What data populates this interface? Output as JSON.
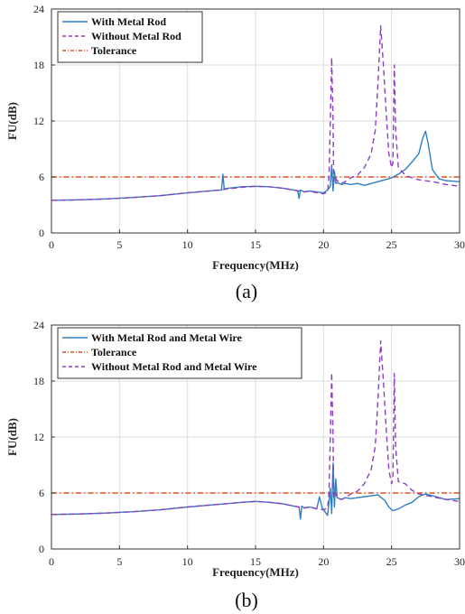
{
  "chart_data": [
    {
      "panel_label": "(a)",
      "type": "line",
      "xlabel": "Frequency(MHz)",
      "ylabel": "FU(dB)",
      "xlim": [
        0,
        30
      ],
      "ylim": [
        0,
        24
      ],
      "xticks": [
        0,
        5,
        10,
        15,
        20,
        25,
        30
      ],
      "yticks": [
        0,
        6,
        12,
        18,
        24
      ],
      "xtick_labels": [
        "0",
        "5",
        "10",
        "15",
        "20",
        "25",
        "30"
      ],
      "ytick_labels": [
        "0",
        "6",
        "12",
        "18",
        "24"
      ],
      "grid": true,
      "legend_position": "top-left",
      "series": [
        {
          "name": "With Metal Rod",
          "color": "#2f7fc1",
          "style": "solid",
          "x": [
            0,
            2,
            4,
            6,
            8,
            10,
            12,
            12.5,
            12.6,
            12.7,
            12.8,
            13,
            14,
            15,
            16,
            17,
            17.8,
            18.1,
            18.2,
            18.3,
            18.6,
            19,
            19.5,
            20,
            20.3,
            20.5,
            20.6,
            20.7,
            20.8,
            20.9,
            21,
            21.3,
            21.6,
            22,
            22.5,
            23,
            24,
            25,
            25.5,
            26,
            26.5,
            27,
            27.3,
            27.5,
            27.7,
            28,
            28.5,
            29,
            30
          ],
          "y": [
            3.5,
            3.55,
            3.65,
            3.8,
            4.0,
            4.3,
            4.55,
            4.6,
            6.3,
            4.7,
            4.75,
            4.8,
            4.95,
            5.0,
            4.95,
            4.8,
            4.6,
            4.5,
            3.7,
            4.6,
            4.4,
            4.5,
            4.4,
            4.3,
            4.6,
            5.0,
            7.3,
            4.5,
            6.6,
            5.3,
            5.4,
            5.2,
            5.3,
            5.2,
            5.3,
            5.1,
            5.5,
            5.9,
            6.3,
            6.8,
            7.6,
            8.5,
            10.2,
            10.9,
            9.5,
            6.8,
            5.8,
            5.6,
            5.5
          ]
        },
        {
          "name": "Without Metal Rod",
          "color": "#8e3fbf",
          "style": "dashed",
          "x": [
            0,
            2,
            4,
            6,
            8,
            10,
            12,
            14,
            15,
            16,
            17,
            17.8,
            18.2,
            18.6,
            19,
            19.5,
            20,
            20.3,
            20.4,
            20.5,
            20.6,
            20.7,
            20.75,
            20.85,
            21,
            21.3,
            21.6,
            22,
            22.5,
            23,
            23.5,
            23.8,
            24,
            24.2,
            24.4,
            24.6,
            24.8,
            25.0,
            25.1,
            25.2,
            25.3,
            25.5,
            26,
            26.5,
            27,
            28,
            29,
            30
          ],
          "y": [
            3.5,
            3.55,
            3.65,
            3.8,
            4.0,
            4.3,
            4.55,
            4.9,
            5.0,
            4.95,
            4.8,
            4.6,
            4.5,
            4.4,
            4.5,
            4.3,
            4.2,
            4.4,
            6.0,
            12.0,
            18.8,
            12.0,
            5.5,
            6.0,
            5.6,
            5.3,
            5.5,
            5.9,
            6.2,
            7.0,
            8.5,
            11.0,
            16.0,
            22.2,
            18.0,
            13.0,
            8.5,
            7.0,
            7.5,
            18.0,
            11.0,
            7.0,
            6.2,
            5.9,
            5.7,
            5.5,
            5.2,
            5.0
          ]
        },
        {
          "name": "Tolerance",
          "color": "#e0521d",
          "style": "dashdot",
          "x": [
            0,
            30
          ],
          "y": [
            6,
            6
          ]
        }
      ]
    },
    {
      "panel_label": "(b)",
      "type": "line",
      "xlabel": "Frequency(MHz)",
      "ylabel": "FU(dB)",
      "xlim": [
        0,
        30
      ],
      "ylim": [
        0,
        24
      ],
      "xticks": [
        0,
        5,
        10,
        15,
        20,
        25,
        30
      ],
      "yticks": [
        0,
        6,
        12,
        18,
        24
      ],
      "xtick_labels": [
        "0",
        "5",
        "10",
        "15",
        "20",
        "25",
        "30"
      ],
      "ytick_labels": [
        "0",
        "6",
        "12",
        "18",
        "24"
      ],
      "grid": true,
      "legend_position": "top-left",
      "series": [
        {
          "name": "With Metal Rod and Metal Wire",
          "color": "#2f7fc1",
          "style": "solid",
          "x": [
            0,
            2,
            4,
            6,
            8,
            10,
            12,
            14,
            15,
            16,
            17,
            17.8,
            18.2,
            18.3,
            18.4,
            18.6,
            19,
            19.5,
            19.7,
            19.9,
            20,
            20.3,
            20.5,
            20.6,
            20.7,
            20.8,
            20.9,
            21,
            21.3,
            21.6,
            22,
            23,
            24,
            24.5,
            24.8,
            25.1,
            25.5,
            26,
            26.5,
            27,
            27.5,
            28,
            29,
            30
          ],
          "y": [
            3.7,
            3.75,
            3.85,
            4.0,
            4.2,
            4.5,
            4.75,
            5.0,
            5.1,
            5.0,
            4.85,
            4.6,
            4.5,
            3.2,
            4.6,
            4.4,
            4.5,
            4.3,
            5.6,
            4.4,
            4.2,
            3.6,
            6.5,
            3.8,
            9.2,
            4.5,
            7.5,
            5.5,
            5.3,
            5.5,
            5.4,
            5.6,
            5.8,
            5.2,
            4.5,
            4.1,
            4.3,
            4.7,
            5.0,
            5.6,
            5.9,
            5.7,
            5.3,
            5.4
          ]
        },
        {
          "name": "Tolerance",
          "color": "#e0521d",
          "style": "dashdot",
          "x": [
            0,
            30
          ],
          "y": [
            6,
            6
          ]
        },
        {
          "name": "Without Metal Rod and Metal Wire",
          "color": "#8e3fbf",
          "style": "dashed",
          "x": [
            0,
            2,
            4,
            6,
            8,
            10,
            12,
            14,
            15,
            16,
            17,
            17.8,
            18.2,
            18.6,
            19,
            19.5,
            20,
            20.3,
            20.4,
            20.5,
            20.6,
            20.7,
            20.75,
            20.85,
            21,
            21.3,
            21.6,
            22,
            22.5,
            23,
            23.5,
            23.8,
            24,
            24.2,
            24.4,
            24.6,
            24.8,
            25.0,
            25.1,
            25.2,
            25.3,
            25.5,
            26,
            26.5,
            27,
            28,
            29,
            30
          ],
          "y": [
            3.7,
            3.75,
            3.85,
            4.0,
            4.2,
            4.5,
            4.75,
            5.0,
            5.1,
            5.0,
            4.85,
            4.6,
            4.5,
            4.4,
            4.5,
            4.3,
            4.2,
            4.4,
            6.0,
            12.0,
            18.9,
            12.0,
            5.5,
            6.0,
            5.6,
            5.3,
            5.5,
            5.9,
            6.2,
            7.0,
            8.5,
            11.0,
            16.0,
            22.3,
            18.0,
            13.0,
            8.5,
            7.0,
            7.5,
            18.8,
            11.0,
            7.2,
            7.0,
            6.3,
            5.9,
            5.6,
            5.3,
            5.1
          ]
        }
      ]
    }
  ]
}
